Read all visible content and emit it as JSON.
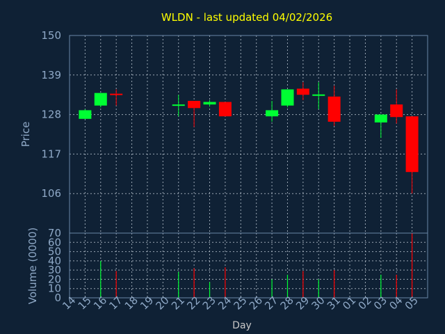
{
  "colors": {
    "background": "#0f2135",
    "up": "#00ff33",
    "down": "#ff0000",
    "title": "#ffff00",
    "axis_text": "#8fa9c7",
    "grid": "#c9d3de"
  },
  "chart_data": [
    {
      "type": "candlestick",
      "title": "WLDN - last updated 04/02/2026",
      "ylabel": "Price",
      "ylim": [
        95,
        150
      ],
      "yticks": [
        106,
        117,
        128,
        139,
        150
      ],
      "grid": true,
      "categories": [
        "14",
        "15",
        "16",
        "17",
        "18",
        "19",
        "20",
        "21",
        "22",
        "23",
        "24",
        "25",
        "26",
        "27",
        "28",
        "29",
        "30",
        "31",
        "01",
        "02",
        "03",
        "04",
        "05"
      ],
      "series": [
        {
          "ohlc": [
            {
              "x": "14",
              "open": 126.8,
              "high": 129.5,
              "low": 126.8,
              "close": 129.2
            },
            {
              "x": "15",
              "open": 130.5,
              "high": 134.0,
              "low": 130.0,
              "close": 134.0
            },
            {
              "x": "16",
              "open": 133.8,
              "high": 135.0,
              "low": 130.5,
              "close": 133.5
            },
            {
              "x": "20",
              "open": 130.5,
              "high": 133.5,
              "low": 127.5,
              "close": 130.8
            },
            {
              "x": "21",
              "open": 131.8,
              "high": 131.8,
              "low": 124.5,
              "close": 129.8
            },
            {
              "x": "22",
              "open": 130.8,
              "high": 132.0,
              "low": 130.2,
              "close": 131.5
            },
            {
              "x": "23",
              "open": 131.5,
              "high": 131.5,
              "low": 127.5,
              "close": 127.5
            },
            {
              "x": "26",
              "open": 127.5,
              "high": 131.8,
              "low": 126.0,
              "close": 129.2
            },
            {
              "x": "27",
              "open": 130.5,
              "high": 135.0,
              "low": 130.0,
              "close": 135.0
            },
            {
              "x": "28",
              "open": 135.2,
              "high": 137.0,
              "low": 132.0,
              "close": 133.5
            },
            {
              "x": "29",
              "open": 133.2,
              "high": 137.0,
              "low": 129.5,
              "close": 133.6
            },
            {
              "x": "30",
              "open": 133.0,
              "high": 136.0,
              "low": 124.8,
              "close": 126.0
            },
            {
              "x": "02",
              "open": 125.8,
              "high": 128.0,
              "low": 121.5,
              "close": 128.0
            },
            {
              "x": "03",
              "open": 130.8,
              "high": 135.0,
              "low": 125.5,
              "close": 127.3
            },
            {
              "x": "04",
              "open": 127.5,
              "high": 127.5,
              "low": 106.0,
              "close": 112.0
            }
          ]
        }
      ]
    },
    {
      "type": "bar",
      "ylabel": "Volume (0000)",
      "xlabel": "Day",
      "ylim": [
        0,
        70
      ],
      "yticks": [
        0,
        10,
        20,
        30,
        40,
        50,
        60,
        70
      ],
      "grid": true,
      "categories": [
        "14",
        "15",
        "16",
        "17",
        "18",
        "19",
        "20",
        "21",
        "22",
        "23",
        "24",
        "25",
        "26",
        "27",
        "28",
        "29",
        "30",
        "31",
        "01",
        "02",
        "03",
        "04",
        "05"
      ],
      "series": [
        {
          "values": [
            {
              "x": "15",
              "value": 40,
              "direction": "up"
            },
            {
              "x": "16",
              "value": 29,
              "direction": "down"
            },
            {
              "x": "20",
              "value": 28,
              "direction": "up"
            },
            {
              "x": "21",
              "value": 32,
              "direction": "down"
            },
            {
              "x": "22",
              "value": 17,
              "direction": "up"
            },
            {
              "x": "23",
              "value": 33,
              "direction": "down"
            },
            {
              "x": "26",
              "value": 20,
              "direction": "up"
            },
            {
              "x": "27",
              "value": 25,
              "direction": "up"
            },
            {
              "x": "28",
              "value": 29,
              "direction": "down"
            },
            {
              "x": "29",
              "value": 20,
              "direction": "up"
            },
            {
              "x": "30",
              "value": 30,
              "direction": "down"
            },
            {
              "x": "02",
              "value": 25,
              "direction": "up"
            },
            {
              "x": "03",
              "value": 25,
              "direction": "down"
            },
            {
              "x": "04",
              "value": 70,
              "direction": "down"
            }
          ]
        }
      ]
    }
  ]
}
